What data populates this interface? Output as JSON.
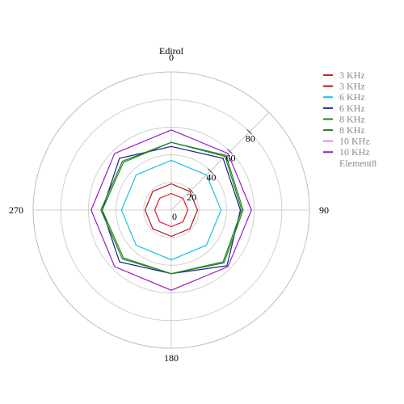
{
  "chart_data": {
    "type": "radar",
    "title": "Edirol",
    "angular_axis": {
      "ticks": [
        0,
        90,
        180,
        270
      ],
      "direction": "clockwise",
      "rotation": 90
    },
    "radial_axis": {
      "range": [
        0,
        100
      ],
      "ticks": [
        0,
        20,
        40,
        60,
        80
      ],
      "angle": 45
    },
    "theta": [
      0,
      45,
      90,
      135,
      180,
      225,
      270,
      315,
      360
    ],
    "series": [
      {
        "name": "3 KHz",
        "color": "#e31a1c",
        "r": [
          12,
          12,
          12,
          12,
          12,
          12,
          12,
          12,
          12
        ]
      },
      {
        "name": "3 KHz",
        "color": "#a6191c",
        "r": [
          19,
          19,
          19,
          19,
          19,
          19,
          19,
          19,
          19
        ]
      },
      {
        "name": "6 KHz",
        "color": "#1ebee6",
        "r": [
          36,
          36,
          36,
          36,
          36,
          36,
          36,
          36,
          36
        ]
      },
      {
        "name": "6 KHz",
        "color": "#1c1c8c",
        "r": [
          46,
          53,
          50,
          57,
          46,
          53,
          50,
          53,
          46
        ]
      },
      {
        "name": "8 KHz",
        "color": "#138c13",
        "r": [
          49,
          55,
          51,
          53,
          46,
          49,
          50,
          49,
          49
        ]
      },
      {
        "name": "8 KHz",
        "color": "#2e7d32",
        "r": [
          49,
          56,
          52,
          54,
          46,
          50,
          51,
          50,
          49
        ]
      },
      {
        "name": "10 KHz",
        "color": "#ee82ee",
        "r": []
      },
      {
        "name": "10 KHz",
        "color": "#9b19cc",
        "r": [
          58,
          58,
          58,
          58,
          58,
          58,
          58,
          58,
          58
        ]
      },
      {
        "name": "Element8",
        "color": "",
        "r": []
      }
    ],
    "grid": true,
    "legend_position": "right"
  }
}
